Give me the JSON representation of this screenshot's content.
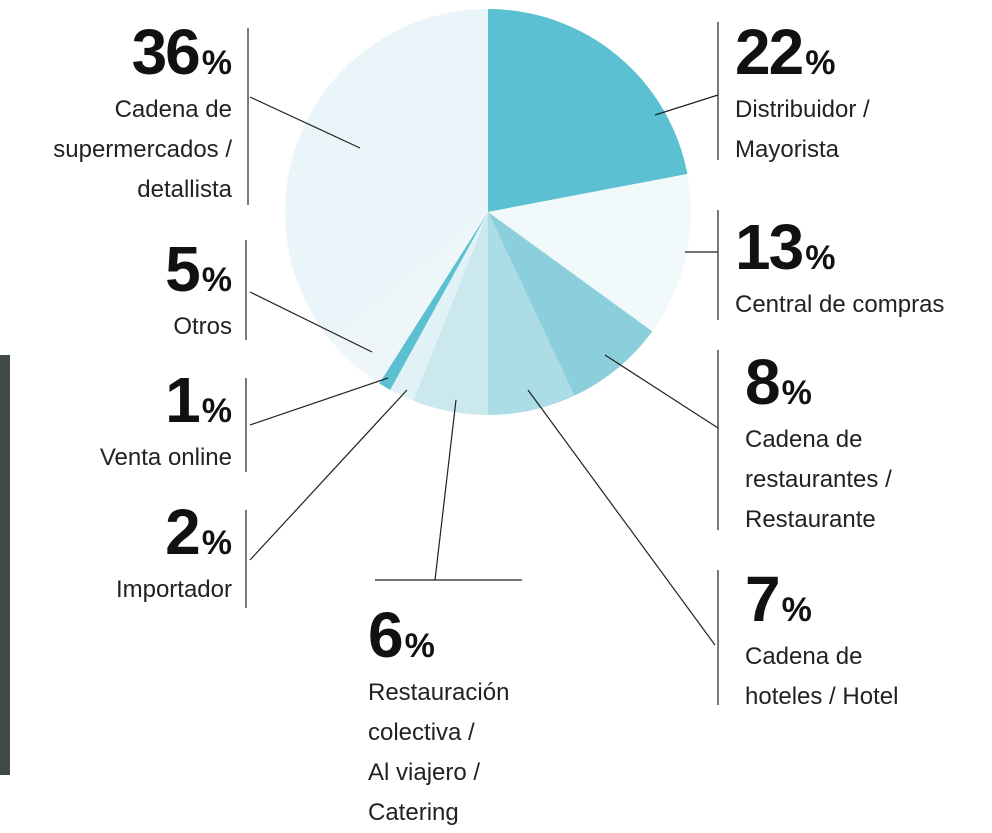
{
  "chart_data": {
    "type": "pie",
    "categories": [
      "Distribuidor /\nMayorista",
      "Central de compras",
      "Cadena de\nrestaurantes /\nRestaurante",
      "Cadena de\nhoteles / Hotel",
      "Restauración\ncolectiva /\nAl viajero /\nCatering",
      "Importador",
      "Venta online",
      "Otros",
      "Cadena de\nsupermercados /\ndetallista"
    ],
    "values": [
      22,
      13,
      8,
      7,
      6,
      2,
      1,
      5,
      36
    ],
    "value_labels": [
      "22%",
      "13%",
      "8%",
      "7%",
      "6%",
      "2%",
      "1%",
      "5%",
      "36%"
    ],
    "colors": [
      "#5bc0d1",
      "#f2f9fb",
      "#8ccfdc",
      "#acdce6",
      "#cbe8ef",
      "#e1f2f6",
      "#5bc0d1",
      "#eef6f9",
      "#e9f5f8"
    ]
  }
}
